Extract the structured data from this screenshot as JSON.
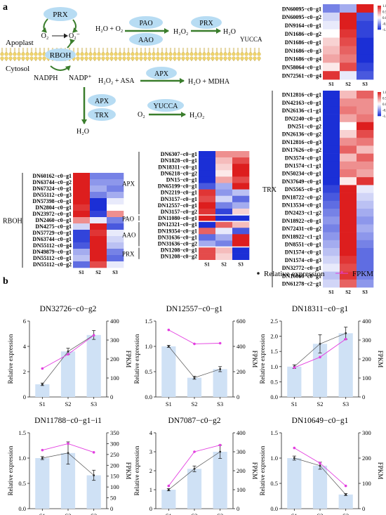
{
  "panel_labels": {
    "a": "a",
    "b": "b"
  },
  "pathway": {
    "enzymes": {
      "prx": "PRX",
      "pao": "PAO",
      "aao": "AAO",
      "prx2": "PRX",
      "apx": "APX",
      "trx": "TRX",
      "yucca": "YUCCA"
    },
    "compartments": {
      "apoplast": "Apoplast",
      "cytosol": "Cytosol",
      "rboh": "RBOH"
    },
    "o2": "O₂",
    "o2_radical": "O₂⁻",
    "reactions": {
      "r1_left": "H₂O + O₂",
      "r1_right": "H₂O₂",
      "r2_right": "H₂O",
      "yucca_label": "YUCCA",
      "nadph": "NADPH",
      "nadp": "NADP⁺",
      "r3_left": "H₂O₂ + ASA",
      "r3_right": "H₂O + MDHA",
      "h2o": "H₂O",
      "r4_left": "O₂",
      "r4_right": "H₂O₂"
    }
  },
  "colors": {
    "heat_high": "#dd1e1e",
    "heat_mid": "#ffffff",
    "heat_low": "#1b2fd6",
    "bar": "#cfe1f5",
    "fpkm_line": "#e33fe0",
    "arrow_green": "#3a7d2c",
    "ellipse": "#b7dcf3",
    "membrane": "#f0d36b"
  },
  "chart_data": [
    {
      "type": "heatmap",
      "group": "RBOH",
      "columns": [
        "S1",
        "S2",
        "S3"
      ],
      "rows": [
        "DN60162−c0−g1",
        "DN63744−c0−g2",
        "DN67324−c0−g1",
        "DN55112−c0−g3",
        "DN57398−c0−g1",
        "DN2804−c0−g1",
        "DN23972−c0−g1",
        "DN2460−c0−g1",
        "DN4275−c0−g1",
        "DN57729−c0−g1",
        "DN63744−c0−g1",
        "DN55112−c0−g4",
        "DN49879−c0−g1",
        "DN55112−c0−g1",
        "DN55112−c0−g2"
      ],
      "values": [
        [
          1,
          -0.6,
          -0.6
        ],
        [
          1,
          -0.5,
          -0.5
        ],
        [
          1,
          -0.4,
          -0.6
        ],
        [
          1,
          -0.6,
          -0.4
        ],
        [
          1,
          -1,
          -0.1
        ],
        [
          0.9,
          -1,
          0
        ],
        [
          1,
          -0.9,
          0.5
        ],
        [
          0.5,
          -0.1,
          -0.6
        ],
        [
          -0.2,
          1,
          -0.8
        ],
        [
          -0.9,
          0.9,
          -0.1
        ],
        [
          -0.9,
          1,
          -0.2
        ],
        [
          -0.8,
          1,
          -0.3
        ],
        [
          -0.4,
          1,
          -0.6
        ],
        [
          -0.3,
          1,
          -0.7
        ],
        [
          -0.7,
          0.8,
          -0.1
        ]
      ]
    },
    {
      "type": "heatmap",
      "group": "APX/PAO/AAO/PRX",
      "columns": [
        "S1",
        "S2",
        "S3"
      ],
      "sections": [
        {
          "name": "APX",
          "rows": 10
        },
        {
          "name": "PAO",
          "rows": 1
        },
        {
          "name": "AAO",
          "rows": 4
        },
        {
          "name": "PRX",
          "rows": 2
        }
      ],
      "rows": [
        "DN6307−c0−g1",
        "DN1828−c0−g1",
        "DN18311−c0−g1",
        "DN6218−c0−g2",
        "DN15−c0−g1",
        "DN65199−c0−g1",
        "DN2219−c0−g1",
        "DN3157−c0−g1",
        "DN12557−c0−g1",
        "DN3157−c0−g2",
        "DN11080−c0−g1",
        "DN12321−c0−g1",
        "DN19354−c0−g1",
        "DN31636−c0−g1",
        "DN31636−c0−g2",
        "DN1208−c0−g1",
        "DN1208−c0−g2"
      ],
      "values": [
        [
          -1,
          0.5,
          0.5
        ],
        [
          -1,
          0.3,
          0.8
        ],
        [
          -1,
          0.2,
          1
        ],
        [
          -1,
          0.1,
          1
        ],
        [
          -1,
          0.4,
          0.8
        ],
        [
          -0.8,
          -0.4,
          1
        ],
        [
          0.9,
          -0.5,
          -0.3
        ],
        [
          0.8,
          -0.2,
          -0.7
        ],
        [
          1,
          -0.6,
          -0.4
        ],
        [
          0.9,
          -0.9,
          0.2
        ],
        [
          1,
          -1,
          -1
        ],
        [
          -1,
          0.7,
          0.3
        ],
        [
          0.7,
          -0.1,
          -0.8
        ],
        [
          -0.7,
          -0.4,
          1
        ],
        [
          -0.4,
          -0.6,
          1
        ],
        [
          0.8,
          0.3,
          -1
        ],
        [
          0.8,
          0.2,
          -1
        ]
      ]
    },
    {
      "type": "heatmap",
      "group": "YUCCA",
      "columns": [
        "S1",
        "S2",
        "S3"
      ],
      "scale_ticks": [
        1.0,
        0.5,
        0,
        -0.5,
        -1.0
      ],
      "rows": [
        "DN60095−c0−g1",
        "DN60095−c0−g2",
        "DN9164−c0−g1",
        "DN1686−c0−g2",
        "DN1686−c0−g1",
        "DN1686−c0−g3",
        "DN1686−c0−g4",
        "DN58064−c0−g1",
        "DN72561−c0−g4"
      ],
      "values": [
        [
          -0.6,
          -0.4,
          1
        ],
        [
          -0.2,
          1,
          -0.8
        ],
        [
          -0.1,
          1,
          -0.9
        ],
        [
          0,
          0.9,
          -0.9
        ],
        [
          0.2,
          0.8,
          -1
        ],
        [
          0.3,
          0.7,
          -1
        ],
        [
          0.4,
          0.6,
          -1
        ],
        [
          0.1,
          0.8,
          -0.9
        ],
        [
          0.9,
          -0.1,
          -0.8
        ]
      ]
    },
    {
      "type": "heatmap",
      "group": "TRX",
      "columns": [
        "S1",
        "S2",
        "S3"
      ],
      "scale_ticks": [
        1.0,
        0.5,
        0,
        -0.5,
        -1.0
      ],
      "rows": [
        "DN12816−c0−g1",
        "DN42163−c0−g1",
        "DN26136−c1−g1",
        "DN2240−c0−g1",
        "DN251−c0−g2",
        "DN26136−c0−g2",
        "DN12816−c0−g3",
        "DN17626−c0−g2",
        "DN3574−c0−g1",
        "DN1574−c1−g1",
        "DN50234−c0−g1",
        "DN37649−c0−g1",
        "DN5565−c0−g1",
        "DN18722−c0−g2",
        "DN13534−c0−g1",
        "DN2423−c1−g2",
        "DN18922−c0−g1",
        "DN72431−c0−g2",
        "DN18922−c1−g1",
        "DN8551−c0−g1",
        "DN1574−c0−g1",
        "DN1574−c0−g3",
        "DN32772−c0−g1",
        "DN16066−c0−g1",
        "DN61278−c2−g1"
      ],
      "values": [
        [
          -1,
          0.3,
          0.7
        ],
        [
          -1,
          0.5,
          0.5
        ],
        [
          -1,
          0.6,
          0.5
        ],
        [
          -1,
          0.4,
          0.6
        ],
        [
          -1,
          0,
          1
        ],
        [
          -1,
          0.2,
          0.8
        ],
        [
          -1,
          0.5,
          0.6
        ],
        [
          -1,
          0.7,
          0.3
        ],
        [
          -1,
          0.3,
          0.7
        ],
        [
          -1,
          0.5,
          0.5
        ],
        [
          -1,
          0.6,
          0.4
        ],
        [
          -1,
          0.1,
          0.9
        ],
        [
          -0.9,
          1,
          -0.1
        ],
        [
          -0.8,
          1,
          -0.2
        ],
        [
          -0.7,
          1,
          -0.3
        ],
        [
          -0.6,
          1,
          -0.4
        ],
        [
          -0.5,
          1,
          -0.5
        ],
        [
          -0.6,
          1,
          -0.4
        ],
        [
          -0.5,
          1,
          -0.5
        ],
        [
          -0.4,
          1,
          -0.6
        ],
        [
          -0.3,
          1,
          -0.7
        ],
        [
          -0.2,
          0.9,
          -0.7
        ],
        [
          -0.1,
          0.8,
          -0.7
        ],
        [
          -0.3,
          0.9,
          -0.6
        ],
        [
          -0.2,
          0.7,
          -0.5
        ]
      ]
    },
    {
      "type": "bar",
      "title": "DN32726−c0−g2",
      "categories": [
        "S1",
        "S2",
        "S3"
      ],
      "values": [
        1.0,
        3.6,
        4.9
      ],
      "errors": [
        0.1,
        0.25,
        0.35
      ],
      "fpkm": [
        150,
        225,
        325
      ],
      "ylabel": "Relative expression",
      "y2label": "FPKM",
      "ylim": [
        0,
        6
      ],
      "yticks": [
        0,
        2,
        4,
        6
      ],
      "y2lim": [
        0,
        400
      ],
      "y2ticks": [
        0,
        100,
        200,
        300,
        400
      ]
    },
    {
      "type": "bar",
      "title": "DN12557−c0−g1",
      "categories": [
        "S1",
        "S2",
        "S3"
      ],
      "values": [
        1.0,
        0.38,
        0.55
      ],
      "errors": [
        0.02,
        0.03,
        0.05
      ],
      "fpkm": [
        530,
        420,
        425
      ],
      "ylabel": "Relative expression",
      "y2label": "FPKM",
      "ylim": [
        0,
        1.5
      ],
      "yticks": [
        0.0,
        0.5,
        1.0,
        1.5
      ],
      "y2lim": [
        0,
        600
      ],
      "y2ticks": [
        0,
        200,
        400,
        600
      ]
    },
    {
      "type": "bar",
      "title": "DN18311−c0−g1",
      "categories": [
        "S1",
        "S2",
        "S3"
      ],
      "values": [
        1.0,
        1.75,
        2.1
      ],
      "errors": [
        0.06,
        0.3,
        0.2
      ],
      "fpkm": [
        155,
        210,
        305
      ],
      "ylabel": "Relative expression",
      "y2label": "FPKM",
      "ylim": [
        0,
        2.5
      ],
      "yticks": [
        0.0,
        0.5,
        1.0,
        1.5,
        2.0,
        2.5
      ],
      "y2lim": [
        0,
        400
      ],
      "y2ticks": [
        0,
        100,
        200,
        300,
        400
      ]
    },
    {
      "type": "bar",
      "title": "DN11788−c0−g1−i1",
      "categories": [
        "S1",
        "S2",
        "S3"
      ],
      "values": [
        1.0,
        1.1,
        0.66
      ],
      "errors": [
        0.03,
        0.22,
        0.1
      ],
      "fpkm": [
        270,
        300,
        260
      ],
      "ylabel": "Relative expression",
      "y2label": "FPKM",
      "ylim": [
        0,
        1.5
      ],
      "yticks": [
        0.0,
        0.5,
        1.0,
        1.5
      ],
      "y2lim": [
        0,
        350
      ],
      "y2ticks": [
        0,
        50,
        100,
        150,
        200,
        250,
        300,
        350
      ]
    },
    {
      "type": "bar",
      "title": "DN7087−c0−g2",
      "categories": [
        "S1",
        "S2",
        "S3"
      ],
      "values": [
        1.0,
        2.1,
        3.0
      ],
      "errors": [
        0.06,
        0.15,
        0.35
      ],
      "fpkm": [
        120,
        300,
        335
      ],
      "ylabel": "Relative expression",
      "y2label": "FPKM",
      "ylim": [
        0,
        4
      ],
      "yticks": [
        0,
        1,
        2,
        3,
        4
      ],
      "y2lim": [
        0,
        400
      ],
      "y2ticks": [
        0,
        100,
        200,
        300,
        400
      ]
    },
    {
      "type": "bar",
      "title": "DN10649−c0−g1",
      "categories": [
        "S1",
        "S2",
        "S3"
      ],
      "values": [
        1.0,
        0.85,
        0.28
      ],
      "errors": [
        0.04,
        0.07,
        0.02
      ],
      "fpkm": [
        240,
        180,
        90
      ],
      "ylabel": "Relative expression",
      "y2label": "FPKM",
      "ylim": [
        0,
        1.5
      ],
      "yticks": [
        0.0,
        0.5,
        1.0,
        1.5
      ],
      "y2lim": [
        0,
        300
      ],
      "y2ticks": [
        0,
        100,
        200,
        300
      ]
    }
  ],
  "legend": {
    "relative": "Relative expression",
    "fpkm": "FPKM"
  }
}
